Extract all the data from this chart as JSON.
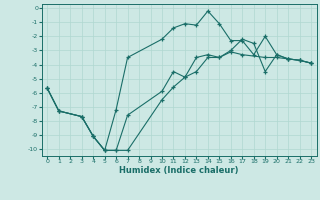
{
  "xlabel": "Humidex (Indice chaleur)",
  "background_color": "#cde8e4",
  "grid_color": "#b0d8d0",
  "line_color": "#1a6e68",
  "xlim": [
    -0.5,
    23.5
  ],
  "ylim": [
    -10.5,
    0.3
  ],
  "xticks": [
    0,
    1,
    2,
    3,
    4,
    5,
    6,
    7,
    8,
    9,
    10,
    11,
    12,
    13,
    14,
    15,
    16,
    17,
    18,
    19,
    20,
    21,
    22,
    23
  ],
  "yticks": [
    0,
    -1,
    -2,
    -3,
    -4,
    -5,
    -6,
    -7,
    -8,
    -9,
    -10
  ],
  "line1_x": [
    0,
    1,
    3,
    4,
    5,
    6,
    7,
    10,
    11,
    12,
    13,
    14,
    15,
    16,
    17,
    19,
    20,
    21,
    22,
    23
  ],
  "line1_y": [
    -5.7,
    -7.3,
    -7.7,
    -9.1,
    -10.1,
    -10.1,
    -10.1,
    -6.5,
    -5.6,
    -4.9,
    -3.5,
    -3.3,
    -3.5,
    -3.1,
    -3.3,
    -3.5,
    -3.5,
    -3.6,
    -3.7,
    -3.9
  ],
  "line2_x": [
    0,
    1,
    3,
    4,
    5,
    6,
    7,
    10,
    11,
    12,
    13,
    14,
    15,
    16,
    17,
    18,
    19,
    20,
    21,
    22,
    23
  ],
  "line2_y": [
    -5.7,
    -7.3,
    -7.7,
    -9.1,
    -10.1,
    -7.2,
    -3.5,
    -2.2,
    -1.4,
    -1.1,
    -1.2,
    -0.2,
    -1.1,
    -2.3,
    -2.3,
    -3.3,
    -2.0,
    -3.3,
    -3.6,
    -3.7,
    -3.9
  ],
  "line3_x": [
    0,
    1,
    3,
    4,
    5,
    6,
    7,
    10,
    11,
    12,
    13,
    14,
    15,
    16,
    17,
    18,
    19,
    20,
    21,
    22,
    23
  ],
  "line3_y": [
    -5.7,
    -7.3,
    -7.7,
    -9.1,
    -10.1,
    -10.1,
    -7.6,
    -5.9,
    -4.5,
    -4.9,
    -4.5,
    -3.5,
    -3.5,
    -3.0,
    -2.2,
    -2.5,
    -4.5,
    -3.3,
    -3.6,
    -3.7,
    -3.9
  ]
}
